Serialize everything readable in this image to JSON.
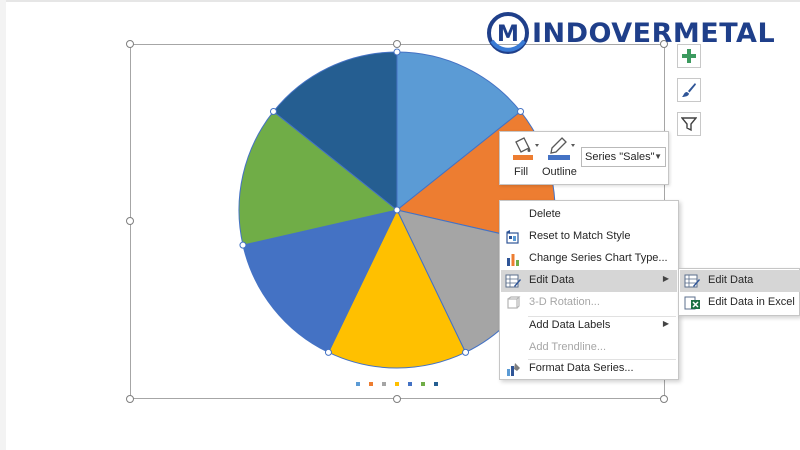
{
  "logo": {
    "text": "INDOVERMETAL",
    "mark_letter": "M",
    "colors": {
      "primary": "#1f3f8a",
      "secondary": "#3a7bd5"
    }
  },
  "chart_data": {
    "type": "pie",
    "values": [
      1,
      1,
      1,
      1,
      1,
      1,
      1
    ],
    "colors": [
      "#5b9bd5",
      "#ed7d31",
      "#a5a5a5",
      "#ffc000",
      "#4472c4",
      "#70ad47",
      "#255e91"
    ],
    "legend_placement": "bottom",
    "selected_series": "Sales"
  },
  "chart_tools": [
    {
      "name": "chart-elements-button",
      "icon": "plus-icon"
    },
    {
      "name": "chart-styles-button",
      "icon": "paintbrush-icon"
    },
    {
      "name": "chart-filters-button",
      "icon": "filter-icon"
    }
  ],
  "mini_toolbar": {
    "fill_label": "Fill",
    "outline_label": "Outline",
    "series_value": "Series \"Sales\"",
    "fill_color": "#ed7d31",
    "outline_color": "#4472c4"
  },
  "context_menu": {
    "items": [
      {
        "label": "Delete",
        "icon": "none"
      },
      {
        "label": "Reset to Match Style",
        "icon": "reset-style-icon"
      },
      {
        "label": "Change Series Chart Type...",
        "icon": "bar-chart-icon"
      },
      {
        "label": "Edit Data",
        "icon": "edit-data-icon",
        "submenu": true,
        "highlighted": true
      },
      {
        "label": "3-D Rotation...",
        "icon": "rotation-3d-icon",
        "disabled": true
      },
      {
        "label": "Add Data Labels",
        "icon": "none",
        "submenu": true
      },
      {
        "label": "Add Trendline...",
        "icon": "none",
        "disabled": true
      },
      {
        "label": "Format Data Series...",
        "icon": "format-series-icon"
      }
    ]
  },
  "submenu": {
    "items": [
      {
        "label": "Edit Data",
        "icon": "edit-data-icon",
        "highlighted": true
      },
      {
        "label": "Edit Data in Excel",
        "icon": "excel-icon"
      }
    ]
  }
}
